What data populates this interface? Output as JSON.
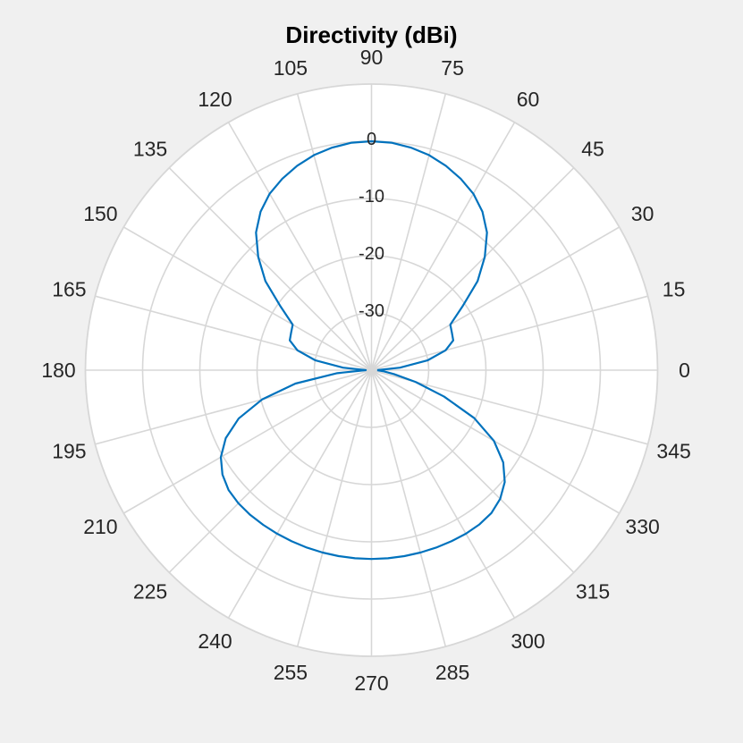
{
  "chart_data": {
    "type": "polar-line",
    "title": "Directivity (dBi)",
    "angle_ticks": [
      "0",
      "15",
      "30",
      "45",
      "60",
      "75",
      "90",
      "105",
      "120",
      "135",
      "150",
      "165",
      "180",
      "195",
      "210",
      "225",
      "240",
      "255",
      "270",
      "285",
      "300",
      "315",
      "330",
      "345"
    ],
    "angle_tick_values_deg": [
      0,
      15,
      30,
      45,
      60,
      75,
      90,
      105,
      120,
      135,
      150,
      165,
      180,
      195,
      210,
      225,
      240,
      255,
      270,
      285,
      300,
      315,
      330,
      345
    ],
    "r_ticks": [
      "0",
      "-10",
      "-20",
      "-30"
    ],
    "r_tick_values": [
      0,
      -10,
      -20,
      -30
    ],
    "rlim": [
      -40,
      10
    ],
    "theta_zero": "right",
    "theta_direction": "counterclockwise",
    "grid": true,
    "series": [
      {
        "color": "#0072BD",
        "theta_deg": [
          0,
          5,
          10,
          15,
          20,
          25,
          30,
          35,
          40,
          45,
          50,
          55,
          60,
          65,
          70,
          75,
          80,
          85,
          90,
          95,
          100,
          105,
          110,
          115,
          120,
          125,
          130,
          135,
          140,
          145,
          150,
          155,
          160,
          165,
          170,
          175,
          180,
          185,
          190,
          195,
          200,
          205,
          210,
          215,
          220,
          225,
          230,
          235,
          240,
          245,
          250,
          255,
          260,
          265,
          270,
          275,
          280,
          285,
          290,
          295,
          300,
          305,
          310,
          315,
          320,
          325,
          330,
          335,
          340,
          345,
          350,
          355,
          360
        ],
        "directivity_dBi": [
          -39,
          -35,
          -30,
          -26.6,
          -24.8,
          -24.5,
          -24.1,
          -20.6,
          -15.8,
          -12,
          -8.6,
          -6.2,
          -4.4,
          -3.1,
          -2,
          -1.1,
          -0.5,
          -0.1,
          0,
          -0.1,
          -0.5,
          -1.1,
          -2,
          -3.1,
          -4.4,
          -6.2,
          -8.6,
          -12,
          -15.8,
          -20.6,
          -24.1,
          -24.5,
          -24.8,
          -26.6,
          -30,
          -35,
          -39,
          -34,
          -26.5,
          -20.2,
          -15.3,
          -11.9,
          -9.6,
          -8.2,
          -7.4,
          -7.1,
          -7,
          -7,
          -7,
          -7,
          -7,
          -7,
          -7,
          -7,
          -7,
          -7,
          -7,
          -7,
          -7,
          -7,
          -7,
          -7.1,
          -7.4,
          -8.2,
          -9.6,
          -11.9,
          -15.3,
          -20.2,
          -26.5,
          -32,
          -36,
          -38,
          -39
        ]
      }
    ]
  },
  "colors": {
    "background": "#f0f0f0",
    "plot_area": "#ffffff",
    "grid": "#d7d7d7",
    "line": "#0072BD"
  }
}
